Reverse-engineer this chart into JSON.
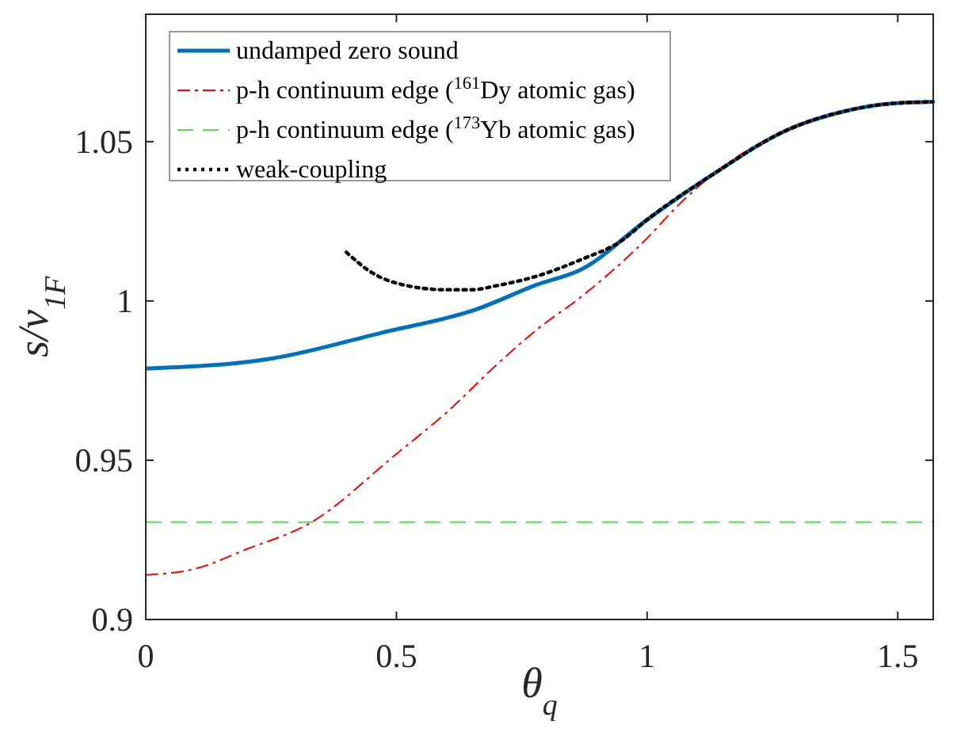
{
  "chart_data": {
    "type": "line",
    "xlabel": "θ$_{q}$",
    "ylabel": "s/v$_{1F}$",
    "xlim": [
      0,
      1.5708
    ],
    "xticks": [
      0,
      0.5,
      1,
      1.5
    ],
    "ylim": [
      0.9,
      1.09
    ],
    "yticks": [
      0.9,
      0.95,
      1,
      1.05
    ],
    "grid": false,
    "legend": "top left",
    "marker": "none",
    "series": [
      {
        "name": "undamped zero sound",
        "color": "#0072bd",
        "line_style": "solid",
        "x": [
          0,
          0.25,
          0.47,
          0.66,
          0.78,
          0.87,
          1,
          1.13,
          1.28,
          1.39,
          1.49,
          1.5708
        ],
        "values": [
          0.9788,
          0.9819,
          0.99,
          0.9974,
          1.0051,
          1.01,
          1.0255,
          1.0396,
          1.0537,
          1.0594,
          1.062,
          1.0625
        ]
      },
      {
        "name": "p-h continuum edge ($^{161}$Dy atomic gas)",
        "color": "#ff0000",
        "line_style": "dashdot",
        "x": [
          0,
          0.1,
          0.2,
          0.33,
          0.5,
          0.6,
          0.7,
          0.78,
          0.87,
          1,
          1.06,
          1.13,
          1.28,
          1.39,
          1.49,
          1.5708
        ],
        "values": [
          0.914,
          0.916,
          0.922,
          0.9305,
          0.952,
          0.965,
          0.98,
          0.991,
          1.0015,
          1.0197,
          1.0297,
          1.0396,
          1.0537,
          1.0594,
          1.062,
          1.0625
        ]
      },
      {
        "name": "p-h continuum edge ($^{173}$Yb atomic gas)",
        "color": "#55dd55",
        "line_style": "dashed",
        "x": [
          0,
          1.5708
        ],
        "values": [
          0.9305,
          0.9305
        ]
      },
      {
        "name": "weak-coupling",
        "color": "#000000",
        "line_style": "dotted",
        "x": [
          0.4,
          0.45,
          0.5,
          0.6,
          0.65,
          0.7,
          0.78,
          0.87,
          0.95,
          1,
          1.13,
          1.28,
          1.39,
          1.49,
          1.5708
        ],
        "values": [
          1.0153,
          1.009,
          1.0056,
          1.0035,
          1.0035,
          1.0048,
          1.0078,
          1.0131,
          1.019,
          1.0255,
          1.0396,
          1.0537,
          1.0594,
          1.062,
          1.0625
        ]
      }
    ]
  }
}
